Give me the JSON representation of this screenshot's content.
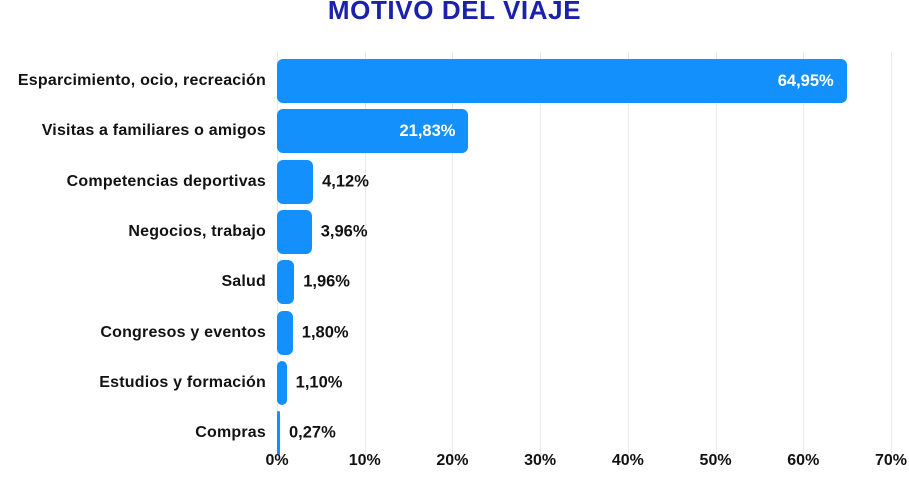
{
  "chart_data": {
    "type": "bar",
    "orientation": "horizontal",
    "title": "MOTIVO DEL VIAJE",
    "categories": [
      "Esparcimiento, ocio, recreación",
      "Visitas a familiares o amigos",
      "Competencias deportivas",
      "Negocios, trabajo",
      "Salud",
      "Congresos y eventos",
      "Estudios y formación",
      "Compras"
    ],
    "values": [
      64.95,
      21.83,
      4.12,
      3.96,
      1.96,
      1.8,
      1.1,
      0.27
    ],
    "value_labels": [
      "64,95%",
      "21,83%",
      "4,12%",
      "3,96%",
      "1,96%",
      "1,80%",
      "1,10%",
      "0,27%"
    ],
    "x_ticks": [
      "0%",
      "10%",
      "20%",
      "30%",
      "40%",
      "50%",
      "60%",
      "70%"
    ],
    "xlim": [
      0,
      70
    ],
    "grid": true,
    "legend": "none",
    "inside_label_min_value": 10,
    "colors": {
      "bar": "#1390fb",
      "title": "#1b21a8",
      "category_text": "#121212",
      "value_inside_text": "#ffffff",
      "value_outside_text": "#121212",
      "gridline": "#e9e9e9",
      "background": "#ffffff"
    }
  }
}
